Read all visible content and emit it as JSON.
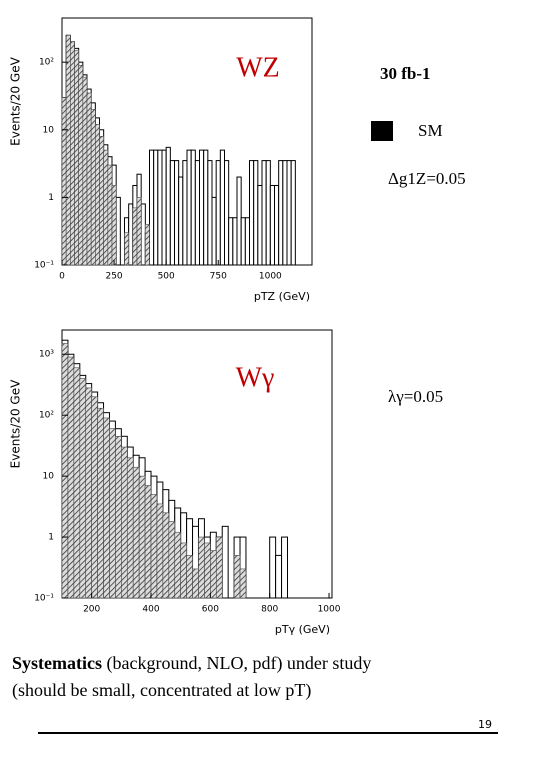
{
  "chart_data": [
    {
      "type": "histogram",
      "title": "WZ",
      "x_label": "pTZ (GeV)",
      "y_label": "Events/20 GeV",
      "log_y": true,
      "bins": [
        0,
        20,
        40,
        60,
        80,
        100,
        120,
        140,
        160,
        180,
        200,
        220,
        240,
        260,
        280,
        300,
        320,
        340,
        360,
        380,
        400,
        420,
        440,
        460,
        480,
        500,
        520,
        540,
        560,
        580,
        600,
        620,
        640,
        660,
        680,
        700,
        720,
        740,
        760,
        780,
        800,
        820,
        840,
        860,
        880,
        900,
        920,
        940,
        960,
        980,
        1000,
        1020,
        1040,
        1060,
        1080,
        1100,
        1120,
        1140,
        1160,
        1180,
        1200
      ],
      "xlim": [
        0,
        1200
      ],
      "xticks": [
        0,
        250,
        500,
        750,
        1000
      ],
      "ylim": [
        0.1,
        450
      ],
      "yticks": [
        {
          "value": 0.1,
          "label": "10⁻¹"
        },
        1,
        10,
        {
          "value": 100,
          "label": "10²"
        }
      ],
      "series": [
        {
          "name": "SM",
          "color": "#444444",
          "values": [
            30,
            250,
            200,
            150,
            90,
            60,
            35,
            20,
            12,
            8,
            5,
            3,
            1.5,
            0,
            0,
            0.3,
            0,
            0.7,
            1,
            0,
            0.4,
            0,
            0,
            0,
            0,
            0,
            0,
            0,
            0,
            0,
            0,
            0,
            0,
            0,
            0,
            0,
            0,
            0,
            0,
            0,
            0,
            0,
            0,
            0,
            0,
            0,
            0,
            0,
            0,
            0,
            0,
            0,
            0,
            0,
            0,
            0,
            0,
            0,
            0,
            0
          ]
        },
        {
          "name": "Δg1Z=0.05",
          "color": "#000000",
          "values": [
            30,
            250,
            200,
            160,
            100,
            65,
            40,
            25,
            15,
            10,
            6,
            4,
            3,
            1,
            0,
            0.5,
            0.8,
            1.5,
            2.2,
            0.8,
            0.3,
            5,
            5,
            5,
            5,
            5.5,
            3.5,
            3.5,
            2,
            3.5,
            5,
            5,
            3.5,
            5,
            5,
            3.5,
            1,
            3.5,
            5,
            3.5,
            0.5,
            0.5,
            2,
            0.5,
            0.5,
            3.5,
            3.5,
            1.5,
            3.5,
            3.5,
            1.5,
            1.5,
            3.5,
            3.5,
            3.5,
            3.5,
            0,
            0,
            0,
            0
          ]
        }
      ]
    },
    {
      "type": "histogram",
      "title": "Wγ",
      "x_label": "pTγ (GeV)",
      "y_label": "Events/20 GeV",
      "log_y": true,
      "bins": [
        100,
        120,
        140,
        160,
        180,
        200,
        220,
        240,
        260,
        280,
        300,
        320,
        340,
        360,
        380,
        400,
        420,
        440,
        460,
        480,
        500,
        520,
        540,
        560,
        580,
        600,
        620,
        640,
        660,
        680,
        700,
        720,
        740,
        760,
        780,
        800,
        820,
        840,
        860,
        880,
        900,
        920,
        940,
        960,
        980,
        1000
      ],
      "xlim": [
        100,
        1010
      ],
      "xticks": [
        200,
        400,
        600,
        800,
        1000
      ],
      "ylim": [
        0.1,
        2500
      ],
      "yticks": [
        {
          "value": 0.1,
          "label": "10⁻¹"
        },
        1,
        10,
        {
          "value": 100,
          "label": "10²"
        },
        {
          "value": 1000,
          "label": "10³"
        }
      ],
      "series": [
        {
          "color": "#444444",
          "values": [
            1500,
            900,
            600,
            400,
            280,
            200,
            130,
            90,
            60,
            45,
            30,
            20,
            14,
            10,
            7,
            5,
            3.5,
            2.5,
            1.8,
            1.2,
            0.8,
            0.5,
            0.3,
            1,
            0.8,
            0.6,
            1,
            0,
            0,
            0.5,
            0.3,
            0,
            0,
            0,
            0,
            0,
            0,
            0,
            0,
            0,
            0,
            0,
            0,
            0,
            0
          ]
        },
        {
          "name": "λγ=0.05",
          "color": "#000000",
          "values": [
            1700,
            1000,
            700,
            450,
            330,
            240,
            160,
            110,
            80,
            60,
            45,
            30,
            22,
            20,
            12,
            10,
            8,
            6,
            4,
            3,
            2.5,
            2,
            1.5,
            2,
            1,
            1.2,
            1,
            1.5,
            0,
            1,
            1,
            0,
            0,
            0,
            0,
            1,
            0.5,
            1,
            0,
            0,
            0,
            0,
            0,
            0,
            0
          ]
        }
      ]
    }
  ],
  "slide": {
    "luminosity": "30 fb-1",
    "note_bold": "Systematics",
    "note_rest": " (background, NLO, pdf) under study",
    "note_line2": "(should be small, concentrated at low pT)",
    "page_number": "19"
  }
}
